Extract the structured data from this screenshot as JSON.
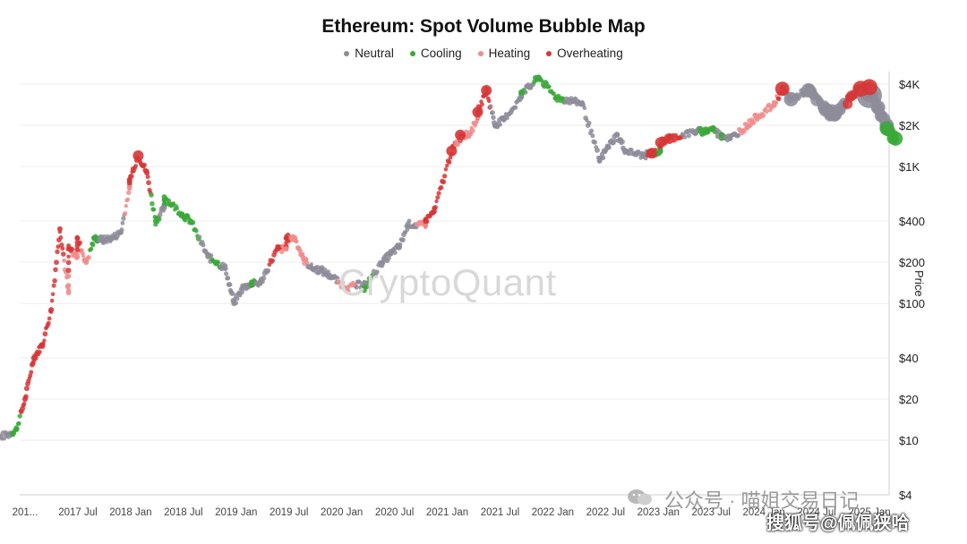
{
  "chart_data": {
    "type": "scatter",
    "title": "Ethereum: Spot Volume Bubble Map",
    "ylabel": "Price",
    "yscale": "log",
    "ylim": [
      4,
      5000
    ],
    "legend_position": "top-center",
    "grid": true,
    "legend": [
      {
        "name": "Neutral",
        "color": "#8d8c99"
      },
      {
        "name": "Cooling",
        "color": "#3aa838"
      },
      {
        "name": "Heating",
        "color": "#f08c8c"
      },
      {
        "name": "Overheating",
        "color": "#d63636"
      }
    ],
    "y_ticks": [
      {
        "value": 4000,
        "label": "$4K"
      },
      {
        "value": 2000,
        "label": "$2K"
      },
      {
        "value": 1000,
        "label": "$1K"
      },
      {
        "value": 400,
        "label": "$400"
      },
      {
        "value": 200,
        "label": "$200"
      },
      {
        "value": 100,
        "label": "$100"
      },
      {
        "value": 40,
        "label": "$40"
      },
      {
        "value": 20,
        "label": "$20"
      },
      {
        "value": 10,
        "label": "$10"
      },
      {
        "value": 4,
        "label": "$4"
      }
    ],
    "x_ticks": [
      "201...",
      "2017 Jul",
      "2018 Jan",
      "2018 Jul",
      "2019 Jan",
      "2019 Jul",
      "2020 Jan",
      "2020 Jul",
      "2021 Jan",
      "2021 Jul",
      "2022 Jan",
      "2022 Jul",
      "2023 Jan",
      "2023 Jul",
      "2024 Jan",
      "2024 Jul",
      "2025 Jan"
    ],
    "series": [
      {
        "name": "Neutral",
        "points": [
          [
            "2016-08",
            10
          ],
          [
            "2016-10",
            11
          ],
          [
            "2017-09",
            290
          ],
          [
            "2017-10",
            300
          ],
          [
            "2017-11",
            330
          ],
          [
            "2018-04",
            500
          ],
          [
            "2018-09",
            220
          ],
          [
            "2018-11",
            180
          ],
          [
            "2018-12",
            100
          ],
          [
            "2019-01",
            130
          ],
          [
            "2019-02",
            140
          ],
          [
            "2019-03",
            140
          ],
          [
            "2019-09",
            180
          ],
          [
            "2019-10",
            175
          ],
          [
            "2019-11",
            160
          ],
          [
            "2020-03",
            140
          ],
          [
            "2020-05",
            200
          ],
          [
            "2020-06",
            230
          ],
          [
            "2020-07",
            260
          ],
          [
            "2020-08",
            380
          ],
          [
            "2021-06",
            2000
          ],
          [
            "2021-07",
            2200
          ],
          [
            "2021-09",
            3200
          ],
          [
            "2021-10",
            3800
          ],
          [
            "2022-03",
            3000
          ],
          [
            "2022-04",
            2900
          ],
          [
            "2022-06",
            1100
          ],
          [
            "2022-07",
            1400
          ],
          [
            "2022-08",
            1700
          ],
          [
            "2022-09",
            1300
          ],
          [
            "2022-11",
            1200
          ],
          [
            "2023-05",
            1800
          ],
          [
            "2023-08",
            1650
          ],
          [
            "2023-09",
            1600
          ],
          [
            "2024-04",
            3100
          ],
          [
            "2024-06",
            3600
          ],
          [
            "2024-08",
            2600
          ],
          [
            "2024-09",
            2400
          ],
          [
            "2025-01",
            3300
          ],
          [
            "2025-02",
            2700
          ],
          [
            "2025-03",
            2000
          ]
        ]
      },
      {
        "name": "Cooling",
        "points": [
          [
            "2016-11",
            12
          ],
          [
            "2017-08",
            300
          ],
          [
            "2018-03",
            400
          ],
          [
            "2018-04",
            600
          ],
          [
            "2018-06",
            450
          ],
          [
            "2018-07",
            400
          ],
          [
            "2018-10",
            200
          ],
          [
            "2019-02",
            140
          ],
          [
            "2020-03",
            130
          ],
          [
            "2021-09",
            3500
          ],
          [
            "2021-11",
            4500
          ],
          [
            "2022-01",
            3200
          ],
          [
            "2023-01",
            1300
          ],
          [
            "2023-06",
            1800
          ],
          [
            "2023-07",
            1900
          ],
          [
            "2023-08",
            1700
          ],
          [
            "2025-03",
            1900
          ],
          [
            "2025-04",
            1600
          ]
        ]
      },
      {
        "name": "Heating",
        "points": [
          [
            "2017-05",
            120
          ],
          [
            "2017-06",
            220
          ],
          [
            "2017-07",
            200
          ],
          [
            "2017-12",
            700
          ],
          [
            "2019-06",
            250
          ],
          [
            "2019-07",
            300
          ],
          [
            "2019-08",
            210
          ],
          [
            "2020-01",
            130
          ],
          [
            "2020-10",
            370
          ],
          [
            "2021-02",
            1600
          ],
          [
            "2021-03",
            1700
          ],
          [
            "2021-04",
            2300
          ],
          [
            "2023-11",
            2000
          ],
          [
            "2023-12",
            2300
          ],
          [
            "2024-02",
            2800
          ]
        ]
      },
      {
        "name": "Overheating",
        "points": [
          [
            "2016-12",
            20
          ],
          [
            "2017-01",
            40
          ],
          [
            "2017-02",
            50
          ],
          [
            "2017-03",
            90
          ],
          [
            "2017-04",
            350
          ],
          [
            "2017-05",
            250
          ],
          [
            "2017-06",
            300
          ],
          [
            "2017-12",
            800
          ],
          [
            "2018-01",
            1200
          ],
          [
            "2018-02",
            900
          ],
          [
            "2019-05",
            250
          ],
          [
            "2019-06",
            300
          ],
          [
            "2020-10",
            400
          ],
          [
            "2020-11",
            470
          ],
          [
            "2021-01",
            1300
          ],
          [
            "2021-02",
            1700
          ],
          [
            "2021-04",
            2500
          ],
          [
            "2021-05",
            3600
          ],
          [
            "2022-12",
            1250
          ],
          [
            "2023-01",
            1500
          ],
          [
            "2023-02",
            1600
          ],
          [
            "2024-03",
            3700
          ],
          [
            "2024-12",
            3700
          ],
          [
            "2025-01",
            3800
          ]
        ]
      }
    ]
  },
  "watermarks": {
    "brand": "CryptoQuant",
    "wechat_account": "公众号 · 喵姐交易日记",
    "sohu": "搜狐号@佩佩狭哈"
  }
}
